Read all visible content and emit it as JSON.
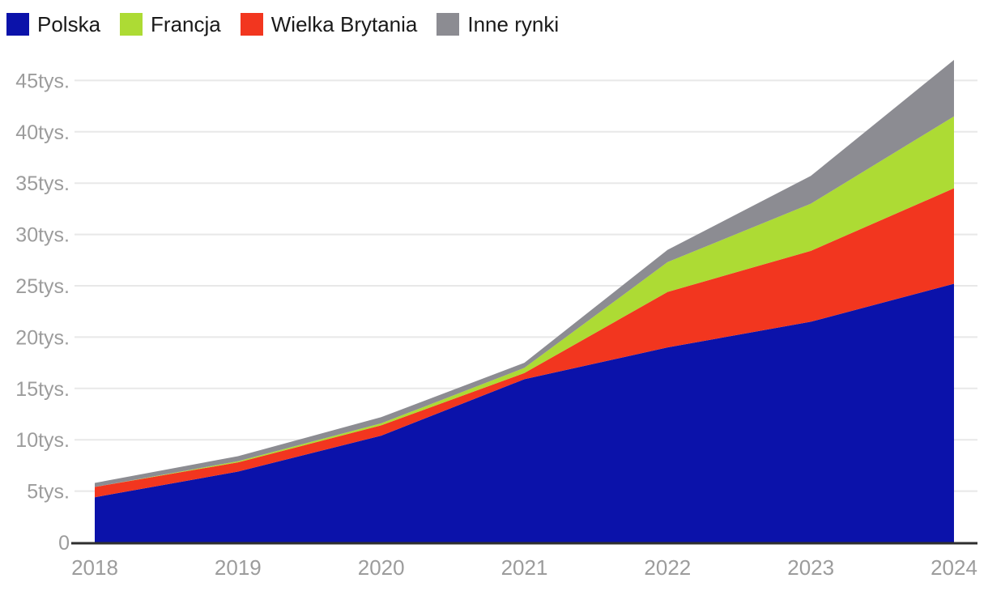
{
  "legend": {
    "items": [
      {
        "label": "Polska",
        "color": "#0B12AA"
      },
      {
        "label": "Francja",
        "color": "#ADDB34"
      },
      {
        "label": "Wielka Brytania",
        "color": "#F2361F"
      },
      {
        "label": "Inne rynki",
        "color": "#8C8C92"
      }
    ]
  },
  "chart_data": {
    "type": "area",
    "stacked": true,
    "title": "",
    "xlabel": "",
    "ylabel": "",
    "unit": "tys.",
    "x": [
      2018,
      2019,
      2020,
      2021,
      2022,
      2023,
      2024
    ],
    "x_tick_labels": [
      "2018",
      "2019",
      "2020",
      "2021",
      "2022",
      "2023",
      "2024"
    ],
    "y_ticks": [
      0,
      5,
      10,
      15,
      20,
      25,
      30,
      35,
      40,
      45
    ],
    "y_tick_labels": [
      "0",
      "5tys.",
      "10tys.",
      "15tys.",
      "20tys.",
      "25tys.",
      "30tys.",
      "35tys.",
      "40tys.",
      "45tys."
    ],
    "ylim": [
      0,
      47.3
    ],
    "values_unit": "thousands (tys.)",
    "series_stack_order_bottom_to_top": [
      {
        "name": "Polska",
        "color": "#0B12AA",
        "values": [
          4.4,
          6.9,
          10.4,
          15.9,
          19.0,
          21.5,
          25.2
        ]
      },
      {
        "name": "Wielka Brytania",
        "color": "#F2361F",
        "values": [
          1.0,
          0.9,
          1.0,
          0.6,
          5.4,
          6.9,
          9.3
        ]
      },
      {
        "name": "Francja",
        "color": "#ADDB34",
        "values": [
          0.0,
          0.1,
          0.2,
          0.5,
          2.9,
          4.6,
          7.0
        ]
      },
      {
        "name": "Inne rynki",
        "color": "#8C8C92",
        "values": [
          0.4,
          0.5,
          0.6,
          0.5,
          1.2,
          2.7,
          5.5
        ]
      }
    ],
    "stacked_totals": [
      5.8,
      8.4,
      12.2,
      17.5,
      28.5,
      35.7,
      47.0
    ],
    "grid": "horizontal",
    "legend_position": "top-left",
    "colors": {
      "axis_label": "#9C9C9C",
      "gridline": "#E8E8E8",
      "baseline": "#2E2E2E",
      "background": "#FFFFFF",
      "legend_text": "#1A1A1A"
    }
  }
}
